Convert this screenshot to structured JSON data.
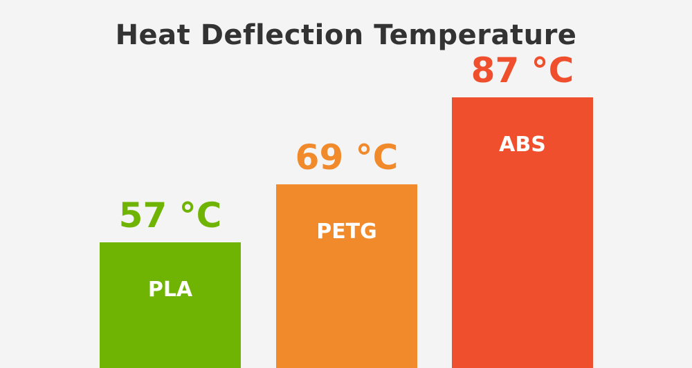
{
  "chart_data": {
    "type": "bar",
    "title": "Heat Deflection Temperature",
    "categories": [
      "PLA",
      "PETG",
      "ABS"
    ],
    "values": [
      57,
      69,
      87
    ],
    "value_labels": [
      "57 °C",
      "69 °C",
      "87 °C"
    ],
    "unit": "°C",
    "colors": [
      "#6fb402",
      "#f08a2a",
      "#ef4f2c"
    ],
    "xlabel": "",
    "ylabel": "",
    "grid": false,
    "legend": "none"
  }
}
